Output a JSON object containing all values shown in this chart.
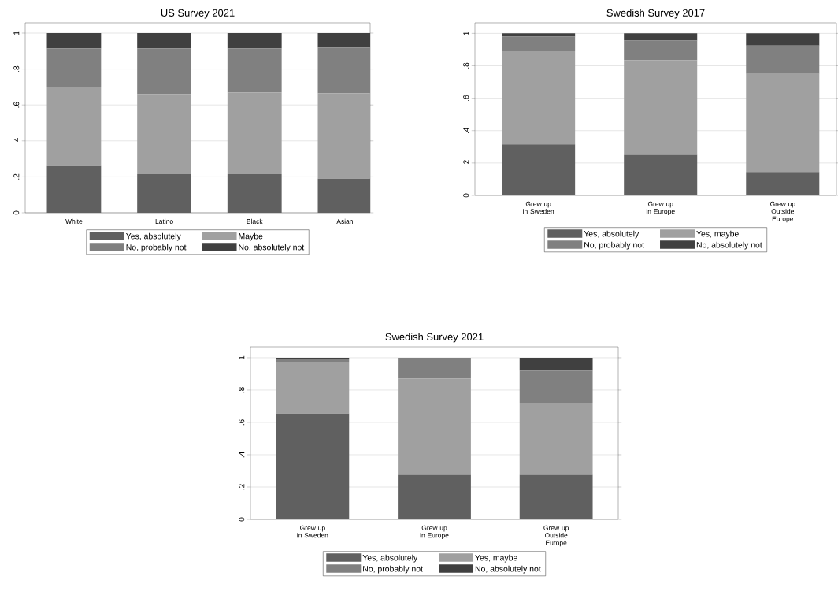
{
  "chart_data": [
    {
      "type": "bar",
      "title": "US Survey 2021",
      "categories": [
        "White",
        "Latino",
        "Black",
        "Asian"
      ],
      "stacked": true,
      "ylim": [
        0,
        1.057
      ],
      "yticks": [
        0,
        {
          "value": 0.2,
          "label": ".2"
        },
        {
          "value": 0.4,
          "label": ".4"
        },
        {
          "value": 0.6,
          "label": ".6"
        },
        {
          "value": 0.8,
          "label": ".8"
        },
        1
      ],
      "grid": "y",
      "legend": "bottom",
      "series": [
        {
          "name": "Yes, absolutely",
          "color": "#606060",
          "values": [
            0.26,
            0.215,
            0.215,
            0.19
          ]
        },
        {
          "name": "Maybe",
          "color": "#a0a0a0",
          "values": [
            0.44,
            0.445,
            0.455,
            0.475
          ]
        },
        {
          "name": "No, probably not",
          "color": "#808080",
          "values": [
            0.215,
            0.255,
            0.245,
            0.255
          ]
        },
        {
          "name": "No, absolutely not",
          "color": "#404040",
          "values": [
            0.085,
            0.085,
            0.085,
            0.08
          ]
        }
      ]
    },
    {
      "type": "bar",
      "title": "Swedish Survey 2017",
      "categories": [
        "Grew up in Sweden",
        "Grew up in Europe",
        "Grew up Outside Europe"
      ],
      "stacked": true,
      "ylim": [
        0,
        1.065
      ],
      "yticks": [
        0,
        {
          "value": 0.2,
          "label": ".2"
        },
        {
          "value": 0.4,
          "label": ".4"
        },
        {
          "value": 0.6,
          "label": ".6"
        },
        {
          "value": 0.8,
          "label": ".8"
        },
        1
      ],
      "grid": "y",
      "legend": "bottom",
      "series": [
        {
          "name": "Yes, absolutely",
          "color": "#606060",
          "values": [
            0.315,
            0.25,
            0.145
          ]
        },
        {
          "name": "Yes, maybe",
          "color": "#a0a0a0",
          "values": [
            0.575,
            0.585,
            0.605
          ]
        },
        {
          "name": "No, probably not",
          "color": "#808080",
          "values": [
            0.09,
            0.12,
            0.175
          ]
        },
        {
          "name": "No, absolutely not",
          "color": "#404040",
          "values": [
            0.02,
            0.045,
            0.075
          ]
        }
      ]
    },
    {
      "type": "bar",
      "title": "Swedish Survey 2021",
      "categories": [
        "Grew up in Sweden",
        "Grew up in Europe",
        "Grew up Outside Europe"
      ],
      "stacked": true,
      "ylim": [
        0,
        1.068
      ],
      "yticks": [
        0,
        {
          "value": 0.2,
          "label": ".2"
        },
        {
          "value": 0.4,
          "label": ".4"
        },
        {
          "value": 0.6,
          "label": ".6"
        },
        {
          "value": 0.8,
          "label": ".8"
        },
        1
      ],
      "grid": "y",
      "legend": "bottom",
      "series": [
        {
          "name": "Yes, absolutely",
          "color": "#606060",
          "values": [
            0.655,
            0.275,
            0.275
          ]
        },
        {
          "name": "Yes, maybe",
          "color": "#a0a0a0",
          "values": [
            0.32,
            0.595,
            0.445
          ]
        },
        {
          "name": "No, probably not",
          "color": "#808080",
          "values": [
            0.02,
            0.13,
            0.2
          ]
        },
        {
          "name": "No, absolutely not",
          "color": "#404040",
          "values": [
            0.005,
            0.0,
            0.08
          ]
        }
      ]
    }
  ]
}
